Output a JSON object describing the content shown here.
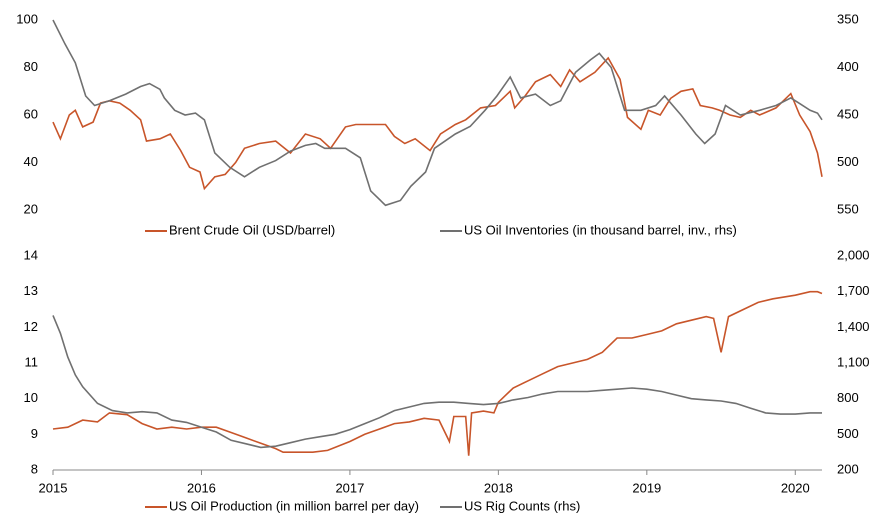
{
  "chart_data": [
    {
      "type": "line",
      "xlim": [
        2015,
        2020.18
      ],
      "ylim": [
        20,
        100
      ],
      "yticks": [
        20,
        40,
        60,
        80,
        100
      ],
      "y2lim": [
        550,
        350
      ],
      "y2ticks": [
        350,
        400,
        450,
        500,
        550
      ],
      "series": [
        {
          "name": "Brent Crude Oil (USD/barrel)",
          "color": "#c8552a",
          "x": [
            2015.0,
            2015.05,
            2015.11,
            2015.15,
            2015.2,
            2015.27,
            2015.32,
            2015.38,
            2015.45,
            2015.52,
            2015.59,
            2015.63,
            2015.72,
            2015.79,
            2015.86,
            2015.92,
            2015.99,
            2016.02,
            2016.09,
            2016.16,
            2016.23,
            2016.29,
            2016.39,
            2016.5,
            2016.6,
            2016.7,
            2016.8,
            2016.87,
            2016.97,
            2017.04,
            2017.14,
            2017.24,
            2017.3,
            2017.37,
            2017.44,
            2017.54,
            2017.61,
            2017.71,
            2017.78,
            2017.88,
            2017.98,
            2018.08,
            2018.11,
            2018.18,
            2018.25,
            2018.35,
            2018.42,
            2018.48,
            2018.55,
            2018.65,
            2018.74,
            2018.82,
            2018.87,
            2018.96,
            2019.01,
            2019.09,
            2019.16,
            2019.23,
            2019.31,
            2019.36,
            2019.44,
            2019.49,
            2019.56,
            2019.63,
            2019.7,
            2019.76,
            2019.87,
            2019.97,
            2020.03,
            2020.1,
            2020.15,
            2020.18
          ],
          "values": [
            57,
            50,
            60,
            62,
            55,
            57,
            65,
            66,
            65,
            62,
            58,
            49,
            50,
            52,
            45,
            38,
            36,
            29,
            34,
            35,
            40,
            46,
            48,
            49,
            44,
            52,
            50,
            46,
            55,
            56,
            56,
            56,
            51,
            48,
            50,
            45,
            52,
            56,
            58,
            63,
            64,
            70,
            63,
            68,
            74,
            77,
            72,
            79,
            74,
            78,
            84,
            75,
            59,
            54,
            62,
            60,
            67,
            70,
            71,
            64,
            63,
            62,
            60,
            59,
            62,
            60,
            63,
            69,
            60,
            53,
            44,
            34
          ]
        },
        {
          "name": "US Oil Inventories (in thousand barrel, inv., rhs)",
          "color": "#707070",
          "axis": "y2",
          "x": [
            2015.0,
            2015.08,
            2015.15,
            2015.22,
            2015.28,
            2015.38,
            2015.49,
            2015.59,
            2015.65,
            2015.72,
            2015.75,
            2015.82,
            2015.89,
            2015.96,
            2016.02,
            2016.09,
            2016.19,
            2016.29,
            2016.39,
            2016.5,
            2016.6,
            2016.7,
            2016.77,
            2016.83,
            2016.97,
            2017.07,
            2017.14,
            2017.24,
            2017.34,
            2017.41,
            2017.51,
            2017.57,
            2017.71,
            2017.81,
            2017.91,
            2017.99,
            2018.08,
            2018.15,
            2018.25,
            2018.35,
            2018.42,
            2018.52,
            2018.62,
            2018.68,
            2018.76,
            2018.85,
            2018.96,
            2019.06,
            2019.12,
            2019.23,
            2019.33,
            2019.39,
            2019.46,
            2019.53,
            2019.63,
            2019.76,
            2019.87,
            2019.97,
            2020.03,
            2020.1,
            2020.15,
            2020.18
          ],
          "values": [
            350,
            375,
            395,
            430,
            440,
            435,
            428,
            420,
            417,
            423,
            432,
            445,
            450,
            448,
            455,
            490,
            505,
            515,
            505,
            498,
            488,
            482,
            480,
            485,
            485,
            495,
            530,
            545,
            540,
            525,
            510,
            485,
            470,
            462,
            445,
            430,
            410,
            432,
            428,
            440,
            435,
            405,
            392,
            385,
            400,
            445,
            445,
            440,
            430,
            450,
            470,
            480,
            470,
            440,
            450,
            445,
            440,
            432,
            438,
            445,
            448,
            455
          ]
        }
      ]
    },
    {
      "type": "line",
      "xlim": [
        2015,
        2020.18
      ],
      "xticks": [
        2015,
        2016,
        2017,
        2018,
        2019,
        2020
      ],
      "ylim": [
        8,
        14
      ],
      "yticks": [
        8,
        9,
        10,
        11,
        12,
        13,
        14
      ],
      "y2lim": [
        200,
        2000
      ],
      "y2ticks": [
        200,
        500,
        800,
        {
          "value": 1100,
          "label": "1,100"
        },
        {
          "value": 1400,
          "label": "1,400"
        },
        {
          "value": 1700,
          "label": "1,700"
        },
        {
          "value": 2000,
          "label": "2,000"
        }
      ],
      "series": [
        {
          "name": "US Oil Production (in million barrel per day)",
          "color": "#c8552a",
          "x": [
            2015.0,
            2015.1,
            2015.2,
            2015.3,
            2015.38,
            2015.5,
            2015.6,
            2015.7,
            2015.8,
            2015.9,
            2016.0,
            2016.1,
            2016.2,
            2016.3,
            2016.4,
            2016.5,
            2016.55,
            2016.65,
            2016.75,
            2016.85,
            2017.0,
            2017.1,
            2017.2,
            2017.3,
            2017.4,
            2017.5,
            2017.6,
            2017.67,
            2017.7,
            2017.78,
            2017.8,
            2017.82,
            2017.9,
            2017.97,
            2018.0,
            2018.1,
            2018.2,
            2018.3,
            2018.4,
            2018.5,
            2018.6,
            2018.7,
            2018.8,
            2018.9,
            2019.0,
            2019.1,
            2019.2,
            2019.3,
            2019.4,
            2019.45,
            2019.5,
            2019.55,
            2019.65,
            2019.75,
            2019.85,
            2020.0,
            2020.1,
            2020.15,
            2020.18
          ],
          "values": [
            9.15,
            9.2,
            9.4,
            9.35,
            9.6,
            9.55,
            9.3,
            9.15,
            9.2,
            9.15,
            9.2,
            9.2,
            9.05,
            8.9,
            8.75,
            8.6,
            8.5,
            8.5,
            8.5,
            8.55,
            8.8,
            9.0,
            9.15,
            9.3,
            9.35,
            9.45,
            9.4,
            8.8,
            9.5,
            9.5,
            8.4,
            9.6,
            9.65,
            9.6,
            9.9,
            10.3,
            10.5,
            10.7,
            10.9,
            11.0,
            11.1,
            11.3,
            11.7,
            11.7,
            11.8,
            11.9,
            12.1,
            12.2,
            12.3,
            12.25,
            11.3,
            12.3,
            12.5,
            12.7,
            12.8,
            12.9,
            13.0,
            13.0,
            12.95
          ]
        },
        {
          "name": "US Rig Counts (rhs)",
          "color": "#707070",
          "axis": "y2",
          "x": [
            2015.0,
            2015.05,
            2015.1,
            2015.15,
            2015.2,
            2015.3,
            2015.4,
            2015.5,
            2015.6,
            2015.7,
            2015.8,
            2015.9,
            2016.0,
            2016.1,
            2016.2,
            2016.3,
            2016.4,
            2016.5,
            2016.6,
            2016.7,
            2016.8,
            2016.9,
            2017.0,
            2017.1,
            2017.2,
            2017.3,
            2017.4,
            2017.5,
            2017.6,
            2017.7,
            2017.8,
            2017.9,
            2018.0,
            2018.1,
            2018.2,
            2018.3,
            2018.4,
            2018.5,
            2018.6,
            2018.7,
            2018.8,
            2018.9,
            2019.0,
            2019.1,
            2019.2,
            2019.3,
            2019.4,
            2019.5,
            2019.6,
            2019.7,
            2019.8,
            2019.9,
            2020.0,
            2020.1,
            2020.18
          ],
          "values": [
            1500,
            1350,
            1150,
            1000,
            900,
            760,
            700,
            680,
            690,
            680,
            620,
            600,
            560,
            520,
            450,
            420,
            390,
            400,
            430,
            460,
            480,
            500,
            540,
            590,
            640,
            700,
            730,
            760,
            770,
            770,
            760,
            750,
            760,
            790,
            810,
            840,
            860,
            860,
            860,
            870,
            880,
            890,
            880,
            860,
            830,
            800,
            790,
            780,
            760,
            720,
            680,
            670,
            670,
            680,
            680
          ]
        }
      ]
    }
  ]
}
